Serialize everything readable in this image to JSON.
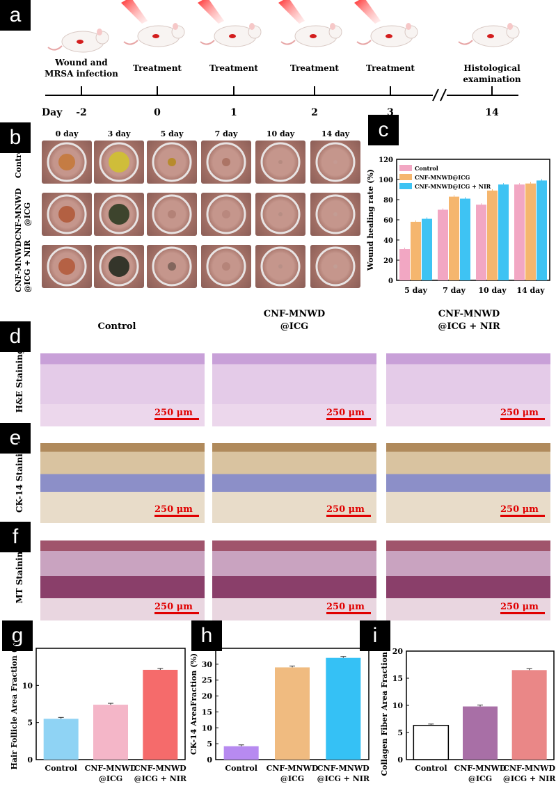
{
  "panels": {
    "a": "a",
    "b": "b",
    "c": "c",
    "d": "d",
    "e": "e",
    "f": "f",
    "g": "g",
    "h": "h",
    "i": "i"
  },
  "timeline": {
    "day_label": "Day",
    "events": [
      {
        "label1": "Wound and",
        "label2": "MRSA infection",
        "day": "-2",
        "laser": false
      },
      {
        "label1": "Treatment",
        "label2": "",
        "day": "0",
        "laser": true
      },
      {
        "label1": "Treatment",
        "label2": "",
        "day": "1",
        "laser": true
      },
      {
        "label1": "Treatment",
        "label2": "",
        "day": "2",
        "laser": true
      },
      {
        "label1": "Treatment",
        "label2": "",
        "day": "3",
        "laser": true
      },
      {
        "label1": "Histological",
        "label2": "examination",
        "day": "14",
        "laser": false
      }
    ]
  },
  "wound_photos": {
    "days": [
      "0 day",
      "3 day",
      "5 day",
      "7 day",
      "10 day",
      "14 day"
    ],
    "rows": [
      "Control",
      "CNF-MNWD\n@ICG",
      "CNF-MNWD\n@ICG + NIR"
    ]
  },
  "histology": {
    "columns": [
      {
        "line1": "Control",
        "line2": ""
      },
      {
        "line1": "CNF-MNWD",
        "line2": "@ICG"
      },
      {
        "line1": "CNF-MNWD",
        "line2": "@ICG + NIR"
      }
    ],
    "rows": [
      "H&E Staining",
      "CK-14 Staining",
      "MT Staining"
    ],
    "scale_bar": "250 μm"
  },
  "chart_data": [
    {
      "id": "c",
      "type": "bar",
      "categories": [
        "5 day",
        "7 day",
        "10 day",
        "14 day"
      ],
      "series": [
        {
          "name": "Control",
          "color": "#f2a7c3",
          "values": [
            31,
            70,
            75,
            95
          ]
        },
        {
          "name": "CNF-MNWD@ICG",
          "color": "#f5b66e",
          "values": [
            58,
            83,
            89,
            96
          ]
        },
        {
          "name": "CNF-MNWD@ICG + NIR",
          "color": "#3ec3f3",
          "values": [
            61,
            81,
            95,
            99
          ]
        }
      ],
      "ylabel": "Wound healing rate (%)",
      "ylim": [
        0,
        120
      ],
      "yticks": [
        0,
        20,
        40,
        60,
        80,
        100,
        120
      ],
      "legend": "top-left"
    },
    {
      "id": "g",
      "type": "bar",
      "categories": [
        "Control",
        "CNF-MNWD\n@ICG",
        "CNF-MNWD\n@ICG + NIR"
      ],
      "values": [
        5.5,
        7.4,
        12.1
      ],
      "colors": [
        "#8fd3f4",
        "#f4b6c8",
        "#f56b6b"
      ],
      "ylabel": "Hair Follicle Area Fraction (%)",
      "ylim": [
        0,
        15
      ],
      "yticks": [
        0,
        5,
        10,
        15
      ]
    },
    {
      "id": "h",
      "type": "bar",
      "categories": [
        "Control",
        "CNF-MNWD\n@ICG",
        "CNF-MNWD\n@ICG + NIR"
      ],
      "values": [
        4.2,
        29,
        32
      ],
      "colors": [
        "#b78af0",
        "#f0bb80",
        "#35c1f5"
      ],
      "ylabel": "CK-14 AreaFraction (%)",
      "ylim": [
        0,
        35
      ],
      "yticks": [
        0,
        5,
        10,
        15,
        20,
        25,
        30,
        35
      ]
    },
    {
      "id": "i",
      "type": "bar",
      "categories": [
        "Control",
        "CNF-MNWD\n@ICG",
        "CNF-MNWD\n@ICG + NIR"
      ],
      "values": [
        6.3,
        9.8,
        16.5
      ],
      "colors": [
        "#ffffff",
        "#a86fa6",
        "#ea8787"
      ],
      "ylabel": "Collagen Fiber Area Fraction (%)",
      "ylim": [
        0,
        20
      ],
      "yticks": [
        0,
        5,
        10,
        15,
        20
      ]
    }
  ]
}
